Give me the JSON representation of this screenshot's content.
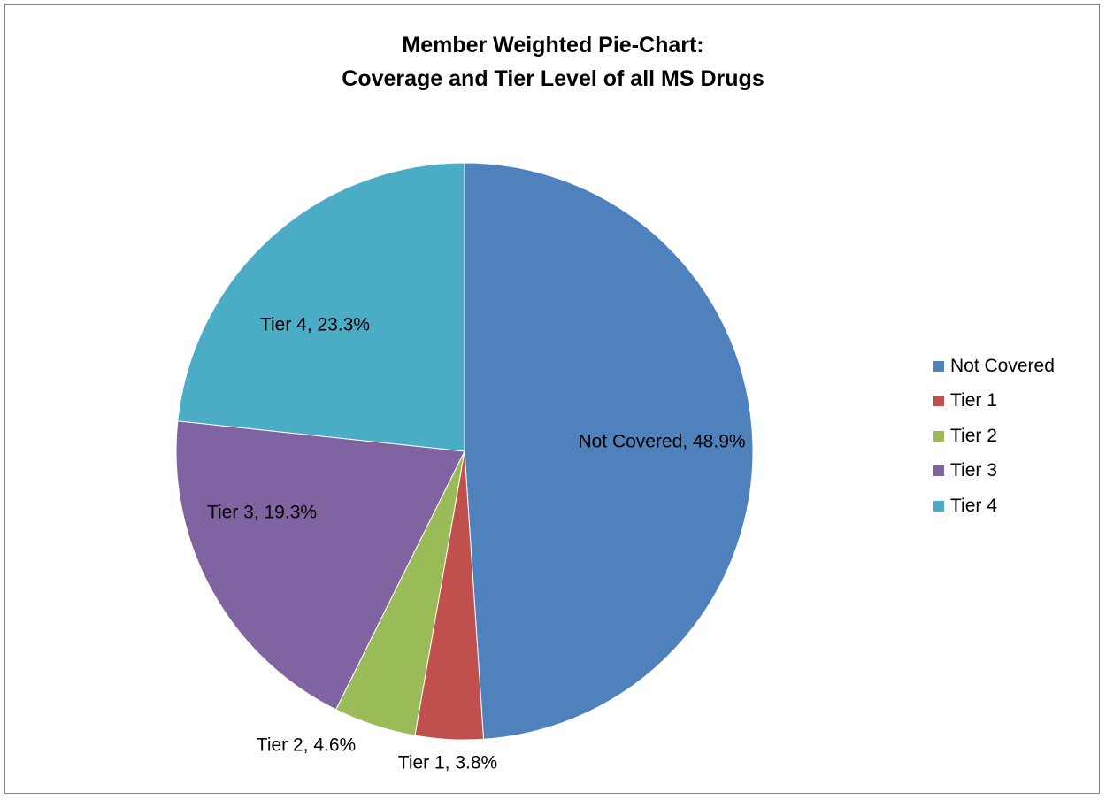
{
  "chart_data": {
    "type": "pie",
    "title": [
      "Member Weighted Pie-Chart:",
      "Coverage and Tier Level of all MS Drugs"
    ],
    "slices": [
      {
        "label": "Not Covered",
        "value": 48.9,
        "display": "Not Covered, 48.9%",
        "color": "#4F81BD"
      },
      {
        "label": "Tier 1",
        "value": 3.8,
        "display": "Tier 1, 3.8%",
        "color": "#C0504D"
      },
      {
        "label": "Tier 2",
        "value": 4.6,
        "display": "Tier 2, 4.6%",
        "color": "#9BBB59"
      },
      {
        "label": "Tier 3",
        "value": 19.3,
        "display": "Tier 3, 19.3%",
        "color": "#8064A2"
      },
      {
        "label": "Tier 4",
        "value": 23.3,
        "display": "Tier 4, 23.3%",
        "color": "#4BACC6"
      }
    ],
    "start_angle": "12 o'clock",
    "direction": "clockwise",
    "legend_position": "right"
  }
}
